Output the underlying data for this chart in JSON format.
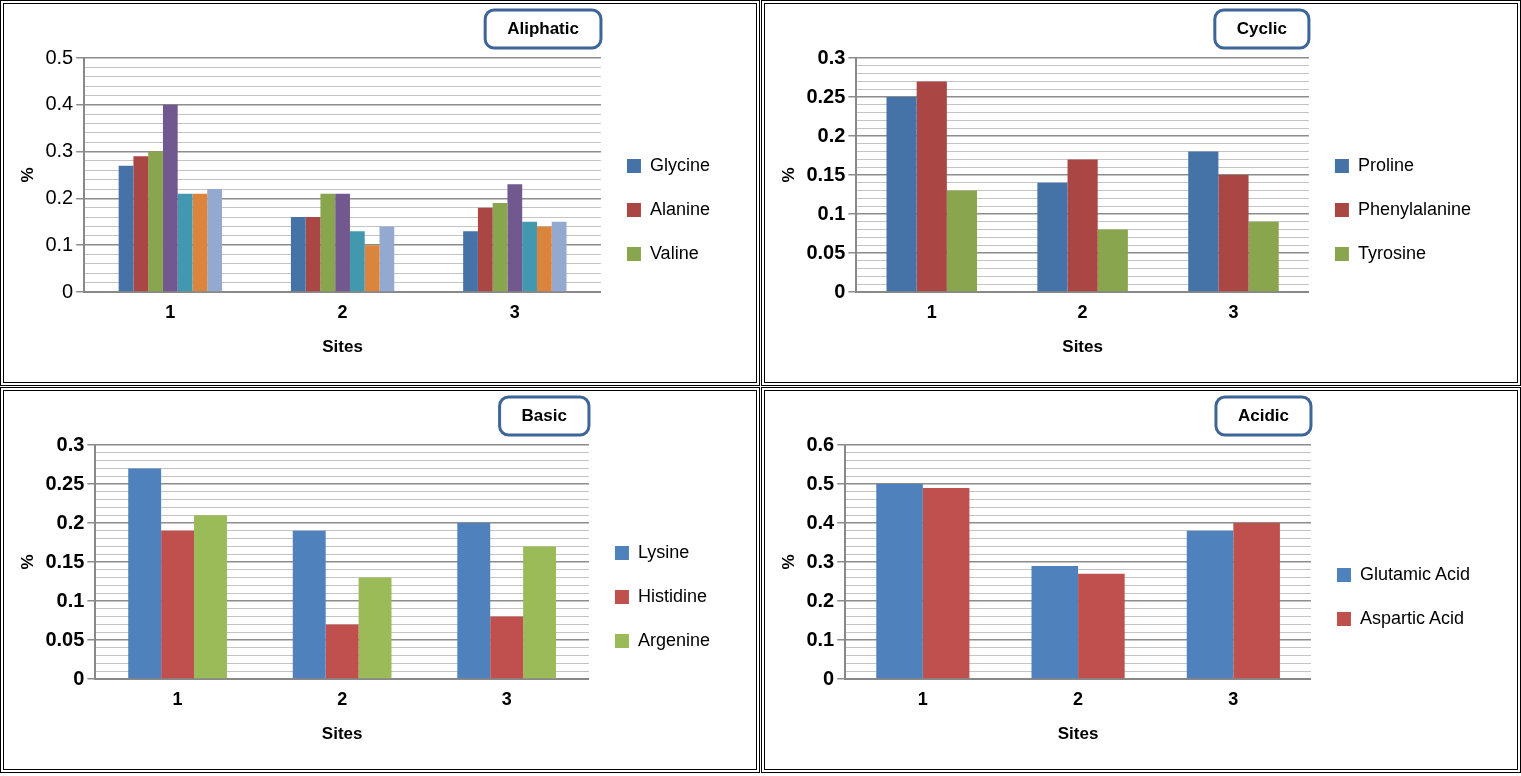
{
  "chart_data": [
    {
      "type": "bar",
      "title": "Aliphatic",
      "xlabel": "Sites",
      "ylabel": "%",
      "categories": [
        "1",
        "2",
        "3"
      ],
      "series": [
        {
          "name": "Glycine",
          "color": "#4572a7",
          "values": [
            0.27,
            0.16,
            0.13
          ]
        },
        {
          "name": "Alanine",
          "color": "#aa4643",
          "values": [
            0.29,
            0.16,
            0.18
          ]
        },
        {
          "name": "Valine",
          "color": "#89a54e",
          "values": [
            0.3,
            0.21,
            0.19
          ]
        },
        {
          "color": "#71588f",
          "values": [
            0.4,
            0.21,
            0.23
          ]
        },
        {
          "color": "#4198af",
          "values": [
            0.21,
            0.13,
            0.15
          ]
        },
        {
          "color": "#db843d",
          "values": [
            0.21,
            0.1,
            0.14
          ]
        },
        {
          "color": "#93a9cf",
          "values": [
            0.22,
            0.14,
            0.15
          ]
        }
      ],
      "ylim": [
        0,
        0.5
      ],
      "yticks": [
        0,
        {
          "value": 0.02,
          "label": null
        },
        {
          "value": 0.04,
          "label": null
        },
        {
          "value": 0.06,
          "label": null
        },
        {
          "value": 0.08,
          "label": null
        },
        0.1,
        {
          "value": 0.12,
          "label": null
        },
        {
          "value": 0.14,
          "label": null
        },
        {
          "value": 0.16,
          "label": null
        },
        {
          "value": 0.18,
          "label": null
        },
        0.2,
        {
          "value": 0.22,
          "label": null
        },
        {
          "value": 0.24,
          "label": null
        },
        {
          "value": 0.26,
          "label": null
        },
        {
          "value": 0.28,
          "label": null
        },
        0.3,
        {
          "value": 0.32,
          "label": null
        },
        {
          "value": 0.34,
          "label": null
        },
        {
          "value": 0.36,
          "label": null
        },
        {
          "value": 0.38,
          "label": null
        },
        0.4,
        {
          "value": 0.42,
          "label": null
        },
        {
          "value": 0.44,
          "label": null
        },
        {
          "value": 0.46,
          "label": null
        },
        {
          "value": 0.48,
          "label": null
        },
        0.5
      ],
      "grid": "y",
      "legend": "right"
    },
    {
      "type": "bar",
      "title": "Cyclic",
      "xlabel": "Sites",
      "ylabel": "%",
      "categories": [
        "1",
        "2",
        "3"
      ],
      "series": [
        {
          "name": "Proline",
          "color": "#4572a7",
          "values": [
            0.25,
            0.14,
            0.18
          ]
        },
        {
          "name": "Phenylalanine",
          "color": "#aa4643",
          "values": [
            0.27,
            0.17,
            0.15
          ]
        },
        {
          "name": "Tyrosine",
          "color": "#89a54e",
          "values": [
            0.13,
            0.08,
            0.09
          ]
        }
      ],
      "ylim": [
        0,
        0.3
      ],
      "yticks": [
        0,
        {
          "value": 0.01,
          "label": null
        },
        {
          "value": 0.02,
          "label": null
        },
        {
          "value": 0.03,
          "label": null
        },
        {
          "value": 0.04,
          "label": null
        },
        0.05,
        {
          "value": 0.06,
          "label": null
        },
        {
          "value": 0.07,
          "label": null
        },
        {
          "value": 0.08,
          "label": null
        },
        {
          "value": 0.09,
          "label": null
        },
        0.1,
        {
          "value": 0.11,
          "label": null
        },
        {
          "value": 0.12,
          "label": null
        },
        {
          "value": 0.13,
          "label": null
        },
        {
          "value": 0.14,
          "label": null
        },
        0.15,
        {
          "value": 0.16,
          "label": null
        },
        {
          "value": 0.17,
          "label": null
        },
        {
          "value": 0.18,
          "label": null
        },
        {
          "value": 0.19,
          "label": null
        },
        0.2,
        {
          "value": 0.21,
          "label": null
        },
        {
          "value": 0.22,
          "label": null
        },
        {
          "value": 0.23,
          "label": null
        },
        {
          "value": 0.24,
          "label": null
        },
        0.25,
        {
          "value": 0.26,
          "label": null
        },
        {
          "value": 0.27,
          "label": null
        },
        {
          "value": 0.28,
          "label": null
        },
        {
          "value": 0.29,
          "label": null
        },
        0.3
      ],
      "grid": "y",
      "legend": "right"
    },
    {
      "type": "bar",
      "title": "Basic",
      "xlabel": "Sites",
      "ylabel": "%",
      "categories": [
        "1",
        "2",
        "3"
      ],
      "series": [
        {
          "name": "Lysine",
          "color": "#4f81bd",
          "values": [
            0.27,
            0.19,
            0.2
          ]
        },
        {
          "name": "Histidine",
          "color": "#c0504d",
          "values": [
            0.19,
            0.07,
            0.08
          ]
        },
        {
          "name": "Argenine",
          "color": "#9bbb59",
          "values": [
            0.21,
            0.13,
            0.17
          ]
        }
      ],
      "ylim": [
        0,
        0.3
      ],
      "yticks": [
        0,
        {
          "value": 0.01,
          "label": null
        },
        {
          "value": 0.02,
          "label": null
        },
        {
          "value": 0.03,
          "label": null
        },
        {
          "value": 0.04,
          "label": null
        },
        0.05,
        {
          "value": 0.06,
          "label": null
        },
        {
          "value": 0.07,
          "label": null
        },
        {
          "value": 0.08,
          "label": null
        },
        {
          "value": 0.09,
          "label": null
        },
        0.1,
        {
          "value": 0.11,
          "label": null
        },
        {
          "value": 0.12,
          "label": null
        },
        {
          "value": 0.13,
          "label": null
        },
        {
          "value": 0.14,
          "label": null
        },
        0.15,
        {
          "value": 0.16,
          "label": null
        },
        {
          "value": 0.17,
          "label": null
        },
        {
          "value": 0.18,
          "label": null
        },
        {
          "value": 0.19,
          "label": null
        },
        0.2,
        {
          "value": 0.21,
          "label": null
        },
        {
          "value": 0.22,
          "label": null
        },
        {
          "value": 0.23,
          "label": null
        },
        {
          "value": 0.24,
          "label": null
        },
        0.25,
        {
          "value": 0.26,
          "label": null
        },
        {
          "value": 0.27,
          "label": null
        },
        {
          "value": 0.28,
          "label": null
        },
        {
          "value": 0.29,
          "label": null
        },
        0.3
      ],
      "grid": "y",
      "legend": "right"
    },
    {
      "type": "bar",
      "title": "Acidic",
      "xlabel": "Sites",
      "ylabel": "%",
      "categories": [
        "1",
        "2",
        "3"
      ],
      "series": [
        {
          "name": "Glutamic Acid",
          "color": "#4f81bd",
          "values": [
            0.5,
            0.29,
            0.38
          ]
        },
        {
          "name": "Aspartic Acid",
          "color": "#c0504d",
          "values": [
            0.49,
            0.27,
            0.4
          ]
        }
      ],
      "ylim": [
        0,
        0.6
      ],
      "yticks": [
        0,
        {
          "value": 0.02,
          "label": null
        },
        {
          "value": 0.04,
          "label": null
        },
        {
          "value": 0.06,
          "label": null
        },
        {
          "value": 0.08,
          "label": null
        },
        0.1,
        {
          "value": 0.12,
          "label": null
        },
        {
          "value": 0.14,
          "label": null
        },
        {
          "value": 0.16,
          "label": null
        },
        {
          "value": 0.18,
          "label": null
        },
        0.2,
        {
          "value": 0.22,
          "label": null
        },
        {
          "value": 0.24,
          "label": null
        },
        {
          "value": 0.26,
          "label": null
        },
        {
          "value": 0.28,
          "label": null
        },
        0.3,
        {
          "value": 0.32,
          "label": null
        },
        {
          "value": 0.34,
          "label": null
        },
        {
          "value": 0.36,
          "label": null
        },
        {
          "value": 0.38,
          "label": null
        },
        0.4,
        {
          "value": 0.42,
          "label": null
        },
        {
          "value": 0.44,
          "label": null
        },
        {
          "value": 0.46,
          "label": null
        },
        {
          "value": 0.48,
          "label": null
        },
        0.5,
        {
          "value": 0.52,
          "label": null
        },
        {
          "value": 0.54,
          "label": null
        },
        {
          "value": 0.56,
          "label": null
        },
        {
          "value": 0.58,
          "label": null
        },
        0.6
      ],
      "grid": "y",
      "legend": "right"
    }
  ]
}
